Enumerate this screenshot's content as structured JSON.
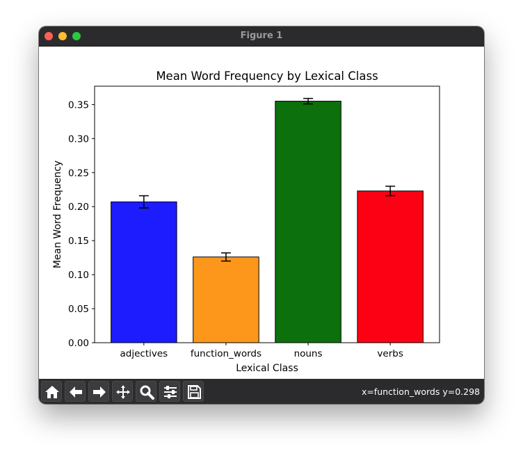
{
  "window": {
    "title": "Figure 1"
  },
  "status": {
    "coords": "x=function_words y=0.298"
  },
  "toolbar": {
    "buttons": [
      "home-icon",
      "back-arrow-icon",
      "forward-arrow-icon",
      "pan-icon",
      "zoom-icon",
      "configure-subplots-icon",
      "save-icon"
    ]
  },
  "chart_data": {
    "type": "bar",
    "title": "Mean Word Frequency by Lexical Class",
    "xlabel": "Lexical Class",
    "ylabel": "Mean Word Frequency",
    "categories": [
      "adjectives",
      "function_words",
      "nouns",
      "verbs"
    ],
    "values": [
      0.207,
      0.126,
      0.355,
      0.223
    ],
    "errors": [
      0.009,
      0.006,
      0.004,
      0.007
    ],
    "colors": [
      "#1c1cff",
      "#fc971c",
      "#0c700c",
      "#fc0014"
    ],
    "ylim": [
      0,
      0.377
    ],
    "yticks": [
      0.0,
      0.05,
      0.1,
      0.15,
      0.2,
      0.25,
      0.3,
      0.35
    ],
    "yticklabels": [
      "0.00",
      "0.05",
      "0.10",
      "0.15",
      "0.20",
      "0.25",
      "0.30",
      "0.35"
    ],
    "grid": false,
    "legend": "none"
  }
}
